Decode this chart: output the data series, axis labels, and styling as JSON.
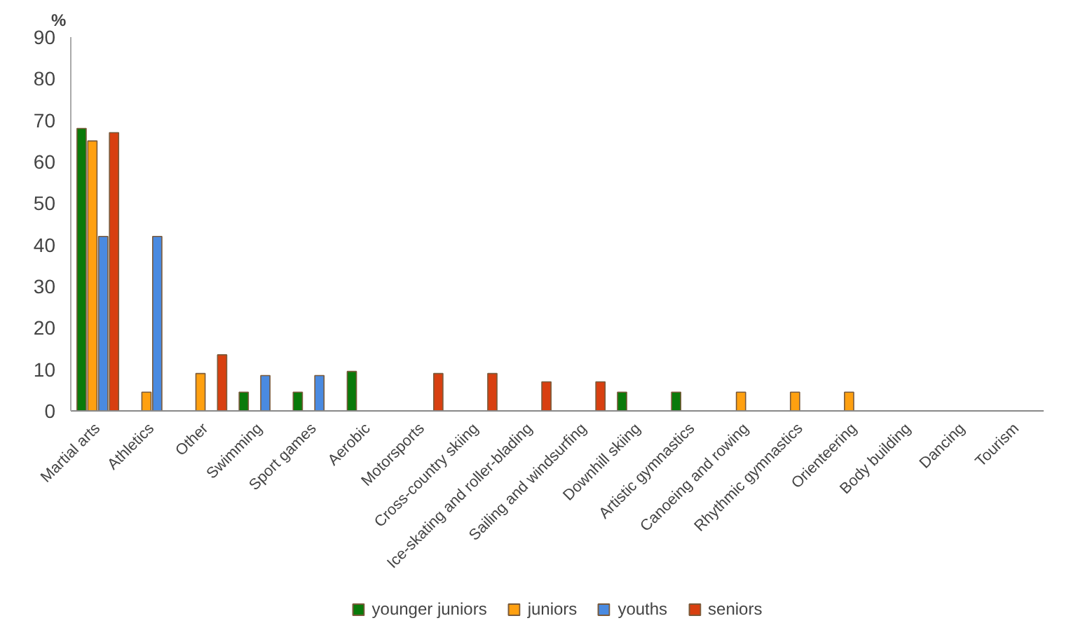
{
  "chart_data": {
    "type": "bar",
    "ylabel": "%",
    "categories": [
      "Martial arts",
      "Athletics",
      "Other",
      "Swimming",
      "Sport games",
      "Aerobic",
      "Motorsports",
      "Cross-country skiing",
      "Ice-skating and roller-blading",
      "Sailing and windsurfing",
      "Downhill skiing",
      "Artistic gymnastics",
      "Canoeing and rowing",
      "Rhythmic gymnastics",
      "Orienteering",
      "Body building",
      "Dancing",
      "Tourism"
    ],
    "series": [
      {
        "name": "younger juniors",
        "color": "#0a7a0a",
        "values": [
          68,
          null,
          null,
          4.5,
          4.5,
          9.5,
          null,
          null,
          null,
          null,
          4.5,
          4.5,
          null,
          null,
          null,
          null,
          null,
          null
        ]
      },
      {
        "name": "juniors",
        "color": "#ffa010",
        "values": [
          65,
          4.5,
          9,
          null,
          null,
          null,
          null,
          null,
          null,
          null,
          null,
          null,
          4.5,
          4.5,
          4.5,
          null,
          null,
          null
        ]
      },
      {
        "name": "youths",
        "color": "#4a8ae0",
        "values": [
          42,
          42,
          null,
          8.5,
          8.5,
          null,
          null,
          null,
          null,
          null,
          null,
          null,
          null,
          null,
          null,
          null,
          null,
          null
        ]
      },
      {
        "name": "seniors",
        "color": "#d84010",
        "values": [
          67,
          null,
          13.5,
          null,
          null,
          null,
          9,
          9,
          7,
          7,
          null,
          null,
          null,
          null,
          null,
          null,
          null,
          null
        ]
      }
    ],
    "ylim": [
      0,
      90
    ],
    "yticks": [
      0,
      10,
      20,
      30,
      40,
      50,
      60,
      70,
      80,
      90
    ],
    "grid": false,
    "legend": "bottom"
  }
}
